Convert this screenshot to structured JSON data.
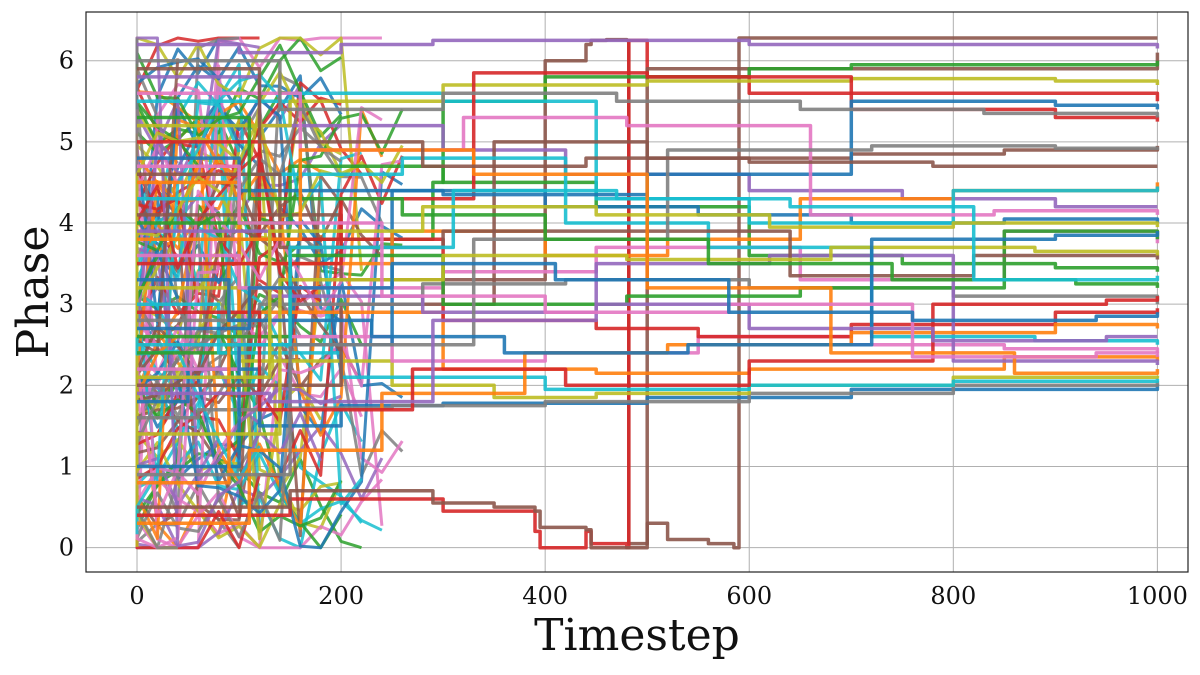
{
  "chart_data": {
    "type": "line",
    "title": "",
    "xlabel": "Timestep",
    "ylabel": "Phase",
    "xlim": [
      -50,
      1030
    ],
    "ylim": [
      -0.3,
      6.6
    ],
    "xticks": [
      0,
      200,
      400,
      600,
      800,
      1000
    ],
    "yticks": [
      0,
      1,
      2,
      3,
      4,
      5,
      6
    ],
    "xtick_labels": [
      "0",
      "200",
      "400",
      "600",
      "800",
      "1000"
    ],
    "ytick_labels": [
      "0",
      "1",
      "2",
      "3",
      "4",
      "5",
      "6"
    ],
    "grid": true,
    "legend": "none",
    "palette": [
      "#1f77b4",
      "#ff7f0e",
      "#2ca02c",
      "#d62728",
      "#9467bd",
      "#8c564b",
      "#e377c2",
      "#7f7f7f",
      "#bcbd22",
      "#17becf"
    ],
    "series": [
      {
        "color": "#8c564b",
        "x": [
          0,
          200,
          400,
          440,
          445,
          460,
          480,
          482,
          500,
          520,
          560,
          585,
          590,
          700,
          1000
        ],
        "y": [
          4.1,
          3.3,
          6.0,
          6.2,
          6.25,
          6.26,
          6.25,
          0.05,
          0.3,
          0.1,
          0.05,
          0.0,
          6.28,
          6.28,
          6.28
        ]
      },
      {
        "color": "#d62728",
        "x": [
          0,
          150,
          300,
          390,
          395,
          440,
          445,
          480,
          482,
          500,
          600,
          1000
        ],
        "y": [
          0.4,
          0.6,
          0.45,
          0.2,
          0.0,
          0.2,
          0.05,
          0.0,
          6.25,
          5.8,
          5.6,
          5.5
        ]
      },
      {
        "color": "#8c564b",
        "x": [
          0,
          150,
          290,
          350,
          390,
          395,
          440,
          445,
          500,
          1000
        ],
        "y": [
          0.5,
          0.7,
          0.55,
          0.5,
          0.45,
          0.25,
          0.22,
          0.0,
          5.9,
          6.1
        ]
      },
      {
        "color": "#9467bd",
        "x": [
          0,
          100,
          200,
          290,
          300,
          600,
          1000
        ],
        "y": [
          6.2,
          6.1,
          6.2,
          6.25,
          6.25,
          6.2,
          6.15
        ]
      },
      {
        "color": "#2ca02c",
        "x": [
          0,
          100,
          290,
          300,
          400,
          600,
          700,
          1000
        ],
        "y": [
          2.4,
          3.8,
          4.5,
          5.5,
          5.8,
          5.9,
          5.95,
          6.0
        ]
      },
      {
        "color": "#1f77b4",
        "x": [
          0,
          50,
          120,
          200,
          300,
          500,
          700,
          1000
        ],
        "y": [
          1.8,
          2.2,
          1.5,
          1.75,
          1.78,
          1.85,
          1.95,
          2.02
        ]
      },
      {
        "color": "#7f7f7f",
        "x": [
          0,
          60,
          150,
          250,
          400,
          600,
          800,
          1000
        ],
        "y": [
          1.6,
          1.7,
          1.72,
          1.75,
          1.8,
          1.9,
          2.0,
          2.05
        ]
      },
      {
        "color": "#bcbd22",
        "x": [
          0,
          100,
          250,
          350,
          450,
          600,
          800,
          1000
        ],
        "y": [
          3.2,
          2.3,
          2.0,
          1.85,
          1.9,
          2.0,
          2.1,
          2.12
        ]
      },
      {
        "color": "#17becf",
        "x": [
          0,
          80,
          200,
          400,
          600,
          800,
          1000
        ],
        "y": [
          3.0,
          2.4,
          2.1,
          1.95,
          2.0,
          2.05,
          2.08
        ]
      },
      {
        "color": "#ff7f0e",
        "x": [
          0,
          100,
          300,
          450,
          600,
          850,
          1000
        ],
        "y": [
          4.5,
          2.9,
          2.2,
          2.15,
          2.2,
          2.35,
          2.3
        ]
      },
      {
        "color": "#e377c2",
        "x": [
          0,
          100,
          250,
          400,
          550,
          700,
          850,
          1000
        ],
        "y": [
          2.2,
          2.6,
          2.3,
          2.4,
          2.6,
          2.5,
          2.45,
          2.4
        ]
      },
      {
        "color": "#d62728",
        "x": [
          0,
          120,
          300,
          450,
          550,
          700,
          900,
          1000
        ],
        "y": [
          5.0,
          3.8,
          2.8,
          2.7,
          2.6,
          2.75,
          2.9,
          2.95
        ]
      },
      {
        "color": "#2ca02c",
        "x": [
          0,
          150,
          300,
          450,
          600,
          750,
          900,
          1000
        ],
        "y": [
          4.0,
          4.7,
          4.5,
          4.2,
          3.6,
          3.5,
          3.45,
          3.4
        ]
      },
      {
        "color": "#1f77b4",
        "x": [
          0,
          100,
          250,
          400,
          550,
          700,
          850,
          1000
        ],
        "y": [
          1.0,
          2.5,
          4.4,
          4.2,
          4.1,
          4.0,
          4.05,
          4.0
        ]
      },
      {
        "color": "#9467bd",
        "x": [
          0,
          120,
          300,
          420,
          600,
          750,
          900,
          1000
        ],
        "y": [
          5.8,
          5.2,
          4.9,
          4.6,
          4.4,
          4.3,
          4.2,
          4.2
        ]
      },
      {
        "color": "#ff7f0e",
        "x": [
          0,
          90,
          250,
          400,
          520,
          650,
          800,
          1000
        ],
        "y": [
          0.8,
          3.5,
          3.9,
          3.6,
          3.8,
          4.3,
          4.4,
          4.5
        ]
      },
      {
        "color": "#17becf",
        "x": [
          0,
          150,
          300,
          450,
          600,
          800,
          1000
        ],
        "y": [
          5.5,
          5.6,
          5.5,
          4.3,
          4.0,
          4.4,
          4.45
        ]
      },
      {
        "color": "#8c564b",
        "x": [
          0,
          200,
          350,
          500,
          700,
          850,
          1000
        ],
        "y": [
          2.0,
          3.0,
          5.0,
          4.8,
          4.85,
          4.9,
          4.95
        ]
      },
      {
        "color": "#e377c2",
        "x": [
          0,
          100,
          300,
          450,
          650,
          850,
          1000
        ],
        "y": [
          3.6,
          3.2,
          3.4,
          3.7,
          3.3,
          3.9,
          3.75
        ]
      },
      {
        "color": "#7f7f7f",
        "x": [
          0,
          120,
          280,
          420,
          600,
          800,
          1000
        ],
        "y": [
          2.8,
          3.0,
          3.25,
          3.3,
          3.2,
          3.1,
          3.0
        ]
      },
      {
        "color": "#bcbd22",
        "x": [
          0,
          150,
          300,
          500,
          700,
          900,
          1000
        ],
        "y": [
          5.2,
          5.5,
          5.7,
          5.75,
          5.78,
          5.75,
          5.7
        ]
      },
      {
        "color": "#d62728",
        "x": [
          0,
          200,
          330,
          500,
          700,
          900,
          1000
        ],
        "y": [
          3.5,
          4.3,
          5.85,
          5.8,
          5.4,
          5.3,
          5.25
        ]
      },
      {
        "color": "#1f77b4",
        "x": [
          0,
          100,
          300,
          500,
          700,
          900,
          1000
        ],
        "y": [
          4.8,
          4.4,
          4.35,
          4.6,
          5.5,
          5.45,
          5.4
        ]
      },
      {
        "color": "#2ca02c",
        "x": [
          0,
          150,
          300,
          480,
          650,
          850,
          1000
        ],
        "y": [
          2.6,
          3.6,
          3.0,
          3.1,
          3.2,
          3.9,
          3.8
        ]
      },
      {
        "color": "#9467bd",
        "x": [
          0,
          130,
          280,
          450,
          620,
          800,
          1000
        ],
        "y": [
          3.9,
          3.1,
          2.9,
          3.5,
          3.6,
          2.3,
          2.25
        ]
      },
      {
        "color": "#17becf",
        "x": [
          0,
          100,
          260,
          420,
          560,
          720,
          880,
          1000
        ],
        "y": [
          4.3,
          4.6,
          4.8,
          4.0,
          3.7,
          2.6,
          2.55,
          2.5
        ]
      },
      {
        "color": "#ff7f0e",
        "x": [
          0,
          110,
          240,
          380,
          520,
          700,
          900,
          1000
        ],
        "y": [
          0.3,
          1.2,
          1.9,
          2.4,
          2.5,
          2.65,
          2.75,
          2.7
        ]
      },
      {
        "color": "#8c564b",
        "x": [
          0,
          140,
          300,
          460,
          640,
          820,
          1000
        ],
        "y": [
          4.6,
          3.7,
          3.9,
          3.9,
          3.35,
          3.6,
          3.55
        ]
      },
      {
        "color": "#e377c2",
        "x": [
          0,
          160,
          320,
          480,
          660,
          840,
          1000
        ],
        "y": [
          5.6,
          4.9,
          5.3,
          5.2,
          4.1,
          4.15,
          4.1
        ]
      },
      {
        "color": "#7f7f7f",
        "x": [
          0,
          150,
          330,
          520,
          720,
          900,
          1000
        ],
        "y": [
          0.9,
          2.5,
          3.8,
          4.9,
          4.95,
          4.92,
          4.9
        ]
      },
      {
        "color": "#bcbd22",
        "x": [
          0,
          140,
          300,
          480,
          680,
          880,
          1000
        ],
        "y": [
          1.4,
          3.3,
          3.6,
          3.55,
          3.7,
          3.65,
          3.6
        ]
      },
      {
        "color": "#d62728",
        "x": [
          0,
          120,
          270,
          420,
          600,
          780,
          950,
          1000
        ],
        "y": [
          2.9,
          1.7,
          2.2,
          2.0,
          2.3,
          3.0,
          3.05,
          3.1
        ]
      },
      {
        "color": "#1f77b4",
        "x": [
          0,
          90,
          230,
          360,
          540,
          720,
          900,
          1000
        ],
        "y": [
          3.3,
          2.8,
          2.6,
          2.4,
          2.5,
          3.8,
          3.85,
          3.9
        ]
      },
      {
        "color": "#2ca02c",
        "x": [
          0,
          110,
          260,
          400,
          560,
          740,
          920,
          1000
        ],
        "y": [
          5.3,
          4.3,
          4.1,
          3.8,
          3.5,
          3.3,
          3.25,
          3.2
        ]
      },
      {
        "color": "#9467bd",
        "x": [
          0,
          130,
          290,
          450,
          600,
          780,
          950,
          1000
        ],
        "y": [
          1.9,
          1.8,
          2.8,
          3.0,
          2.7,
          2.55,
          2.6,
          2.6
        ]
      },
      {
        "color": "#17becf",
        "x": [
          0,
          150,
          310,
          470,
          640,
          820,
          1000
        ],
        "y": [
          2.5,
          3.7,
          4.4,
          4.3,
          4.2,
          3.3,
          3.35
        ]
      },
      {
        "color": "#ff7f0e",
        "x": [
          0,
          160,
          330,
          500,
          680,
          860,
          1000
        ],
        "y": [
          3.8,
          4.9,
          4.6,
          3.2,
          2.4,
          2.15,
          2.2
        ]
      },
      {
        "color": "#8c564b",
        "x": [
          0,
          120,
          280,
          440,
          600,
          780,
          1000
        ],
        "y": [
          5.9,
          5.0,
          4.7,
          4.8,
          4.75,
          4.7,
          4.7
        ]
      },
      {
        "color": "#e377c2",
        "x": [
          0,
          100,
          240,
          400,
          580,
          760,
          940,
          1000
        ],
        "y": [
          4.7,
          4.0,
          3.1,
          2.9,
          3.0,
          2.35,
          2.4,
          2.35
        ]
      },
      {
        "color": "#7f7f7f",
        "x": [
          0,
          140,
          300,
          470,
          650,
          830,
          1000
        ],
        "y": [
          6.0,
          5.4,
          5.6,
          5.5,
          5.4,
          5.35,
          5.3
        ]
      },
      {
        "color": "#bcbd22",
        "x": [
          0,
          130,
          280,
          450,
          620,
          800,
          1000
        ],
        "y": [
          2.1,
          3.9,
          4.2,
          4.1,
          3.95,
          4.0,
          3.95
        ]
      },
      {
        "color": "#1f77b4",
        "x": [
          0,
          110,
          250,
          410,
          580,
          760,
          940,
          1000
        ],
        "y": [
          2.7,
          3.2,
          3.5,
          3.3,
          2.9,
          2.8,
          2.85,
          2.9
        ]
      }
    ],
    "noise_traces_after_step": 20
  }
}
